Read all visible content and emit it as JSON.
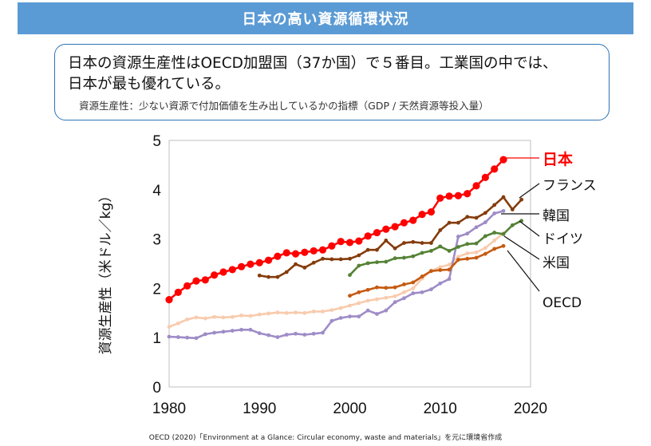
{
  "header": {
    "title": "日本の高い資源循環状況"
  },
  "callout": {
    "line1": "日本の資源生産性はOECD加盟国（37か国）で５番目。工業国の中では、",
    "line2": "日本が最も優れている。",
    "note": "資源生産性：少ない資源で付加価値を生み出しているかの指標（GDP / 天然資源等投入量）"
  },
  "source": "OECD (2020)「Environment at a Glance: Circular economy, waste and materials」を元に環境省作成",
  "chart_data": {
    "type": "line",
    "ylabel": "資源生産性（米ドル／kg）",
    "xlabel": "",
    "xlim": [
      1980,
      2020
    ],
    "ylim": [
      0,
      5
    ],
    "x_ticks": [
      1980,
      1990,
      2000,
      2010,
      2020
    ],
    "y_ticks": [
      0,
      1,
      2,
      3,
      4,
      5
    ],
    "grid": false,
    "legend": "direct labels on right",
    "series": [
      {
        "name": "日本",
        "color": "#ff0000",
        "x": [
          1980,
          1981,
          1982,
          1983,
          1984,
          1985,
          1986,
          1987,
          1988,
          1989,
          1990,
          1991,
          1992,
          1993,
          1994,
          1995,
          1996,
          1997,
          1998,
          1999,
          2000,
          2001,
          2002,
          2003,
          2004,
          2005,
          2006,
          2007,
          2008,
          2009,
          2010,
          2011,
          2012,
          2013,
          2014,
          2015,
          2016,
          2017
        ],
        "y": [
          1.77,
          1.92,
          2.05,
          2.15,
          2.17,
          2.27,
          2.33,
          2.38,
          2.44,
          2.49,
          2.52,
          2.57,
          2.65,
          2.72,
          2.7,
          2.73,
          2.76,
          2.78,
          2.86,
          2.95,
          2.93,
          2.96,
          3.06,
          3.13,
          3.2,
          3.25,
          3.33,
          3.38,
          3.5,
          3.55,
          3.83,
          3.87,
          3.88,
          3.92,
          4.08,
          4.25,
          4.42,
          4.61
        ]
      },
      {
        "name": "フランス",
        "color": "#843c0c",
        "x": [
          1990,
          1991,
          1992,
          1993,
          1994,
          1995,
          1996,
          1997,
          1998,
          1999,
          2000,
          2001,
          2002,
          2003,
          2004,
          2005,
          2006,
          2007,
          2008,
          2009,
          2010,
          2011,
          2012,
          2013,
          2014,
          2015,
          2016,
          2017,
          2018,
          2019
        ],
        "y": [
          2.26,
          2.23,
          2.23,
          2.33,
          2.49,
          2.42,
          2.52,
          2.6,
          2.59,
          2.59,
          2.6,
          2.67,
          2.78,
          2.78,
          2.97,
          2.81,
          2.92,
          2.94,
          2.92,
          2.92,
          3.18,
          3.33,
          3.33,
          3.45,
          3.43,
          3.53,
          3.69,
          3.85,
          3.6,
          3.8
        ]
      },
      {
        "name": "韓国",
        "color": "#548235",
        "x": [
          2000,
          2001,
          2002,
          2003,
          2004,
          2005,
          2006,
          2007,
          2008,
          2009,
          2010,
          2011,
          2012,
          2013,
          2014,
          2015,
          2016,
          2017,
          2018,
          2019
        ],
        "y": [
          2.27,
          2.46,
          2.51,
          2.53,
          2.54,
          2.61,
          2.62,
          2.65,
          2.72,
          2.76,
          2.85,
          2.76,
          2.84,
          2.9,
          2.91,
          3.06,
          3.13,
          3.1,
          3.28,
          3.37
        ]
      },
      {
        "name": "ドイツ",
        "color": "#9e8cc7",
        "x": [
          1980,
          1981,
          1982,
          1983,
          1984,
          1985,
          1986,
          1987,
          1988,
          1989,
          1990,
          1991,
          1992,
          1993,
          1994,
          1995,
          1996,
          1997,
          1998,
          1999,
          2000,
          2001,
          2002,
          2003,
          2004,
          2005,
          2006,
          2007,
          2008,
          2009,
          2010,
          2011,
          2012,
          2013,
          2014,
          2015,
          2016,
          2017
        ],
        "y": [
          1.02,
          1.01,
          1.0,
          0.99,
          1.07,
          1.1,
          1.12,
          1.14,
          1.16,
          1.16,
          1.09,
          1.05,
          1.01,
          1.06,
          1.08,
          1.06,
          1.08,
          1.1,
          1.34,
          1.4,
          1.43,
          1.43,
          1.55,
          1.48,
          1.55,
          1.72,
          1.8,
          1.9,
          1.92,
          1.98,
          2.1,
          2.19,
          3.05,
          3.11,
          3.24,
          3.34,
          3.52,
          3.57
        ]
      },
      {
        "name": "米国",
        "color": "#f8cbad",
        "x": [
          1980,
          1981,
          1982,
          1983,
          1984,
          1985,
          1986,
          1987,
          1988,
          1989,
          1990,
          1991,
          1992,
          1993,
          1994,
          1995,
          1996,
          1997,
          1998,
          1999,
          2000,
          2001,
          2002,
          2003,
          2004,
          2005,
          2006,
          2007,
          2008,
          2009,
          2010,
          2011,
          2012,
          2013,
          2014,
          2015,
          2016,
          2017
        ],
        "y": [
          1.22,
          1.29,
          1.37,
          1.41,
          1.39,
          1.42,
          1.41,
          1.42,
          1.45,
          1.44,
          1.47,
          1.49,
          1.51,
          1.5,
          1.51,
          1.5,
          1.53,
          1.53,
          1.56,
          1.6,
          1.65,
          1.7,
          1.75,
          1.78,
          1.81,
          1.84,
          1.92,
          2.0,
          2.2,
          2.36,
          2.43,
          2.48,
          2.64,
          2.71,
          2.73,
          2.82,
          2.97,
          3.12
        ]
      },
      {
        "name": "OECD",
        "color": "#c55a11",
        "x": [
          2000,
          2001,
          2002,
          2003,
          2004,
          2005,
          2006,
          2007,
          2008,
          2009,
          2010,
          2011,
          2012,
          2013,
          2014,
          2015,
          2016,
          2017
        ],
        "y": [
          1.85,
          1.92,
          1.97,
          2.02,
          2.01,
          2.02,
          2.08,
          2.12,
          2.24,
          2.35,
          2.37,
          2.38,
          2.58,
          2.6,
          2.62,
          2.7,
          2.8,
          2.86
        ]
      }
    ],
    "labels": [
      {
        "text": "日本",
        "color": "#ff0000"
      },
      {
        "text": "フランス",
        "color": "#111111"
      },
      {
        "text": "韓国",
        "color": "#111111"
      },
      {
        "text": "ドイツ",
        "color": "#111111"
      },
      {
        "text": "米国",
        "color": "#111111"
      },
      {
        "text": "OECD",
        "color": "#111111"
      }
    ]
  }
}
